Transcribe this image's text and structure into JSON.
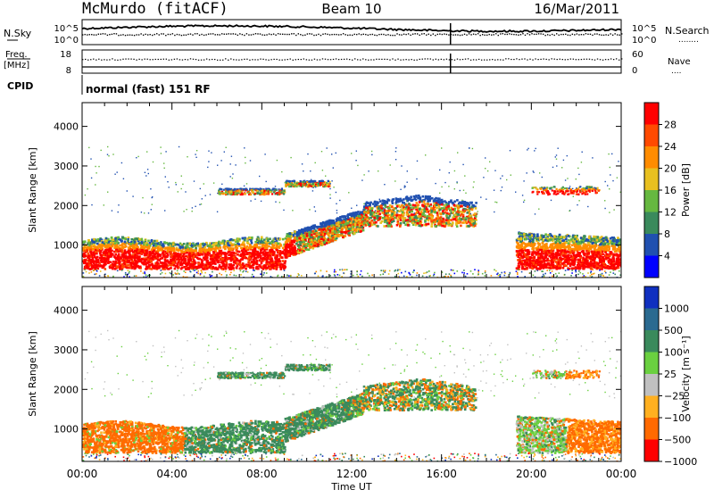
{
  "header": {
    "station": "McMurdo (fitACF)",
    "beam": "Beam 10",
    "date": "16/Mar/2011"
  },
  "noise_panel": {
    "left_label": "N.Sky",
    "right_label": "N.Search",
    "right_label_dots": "........",
    "ticks": [
      "10^5",
      "10^0"
    ]
  },
  "freq_panel": {
    "left_label_1": "Freq.",
    "left_label_2": "[MHz]",
    "left_ticks": [
      "18",
      "8"
    ],
    "right_label": "Nave",
    "right_label_dots": "....",
    "right_ticks": [
      "60",
      "0"
    ]
  },
  "cpid_panel": {
    "label": "CPID",
    "text": "normal (fast) 151 RF"
  },
  "colors": {
    "power_scale": [
      "#0000ff",
      "#2050b0",
      "#3a8a5c",
      "#66b840",
      "#e8c020",
      "#ff8c00",
      "#ff4a00",
      "#ff0000"
    ],
    "velocity_scale": [
      "#ff0000",
      "#ff6a00",
      "#ffb020",
      "#c0c0c0",
      "#6ad040",
      "#3a8a5c",
      "#2a6a90",
      "#1030c0"
    ]
  },
  "chart_data": [
    {
      "type": "heatmap",
      "name": "power",
      "ylabel": "Slant Range [km]",
      "yticks": [
        "1000",
        "2000",
        "3000",
        "4000"
      ],
      "ylim": [
        180,
        4600
      ],
      "xlim": [
        "00:00",
        "24:00"
      ],
      "colorbar": {
        "label": "Power [dB]",
        "ticks": [
          "4",
          "8",
          "12",
          "16",
          "20",
          "24",
          "28"
        ],
        "range": [
          0,
          32
        ]
      }
    },
    {
      "type": "heatmap",
      "name": "velocity",
      "ylabel": "Slant Range [km]",
      "yticks": [
        "1000",
        "2000",
        "3000",
        "4000"
      ],
      "ylim": [
        180,
        4600
      ],
      "xlabel": "Time UT",
      "xticks": [
        "00:00",
        "04:00",
        "08:00",
        "12:00",
        "16:00",
        "20:00",
        "00:00"
      ],
      "xlim": [
        "00:00",
        "24:00"
      ],
      "colorbar": {
        "label": "Velocity [m s⁻¹]",
        "ticks": [
          "1000",
          "500",
          "100",
          "25",
          "−25",
          "−100",
          "−500",
          "−1000"
        ]
      }
    }
  ]
}
